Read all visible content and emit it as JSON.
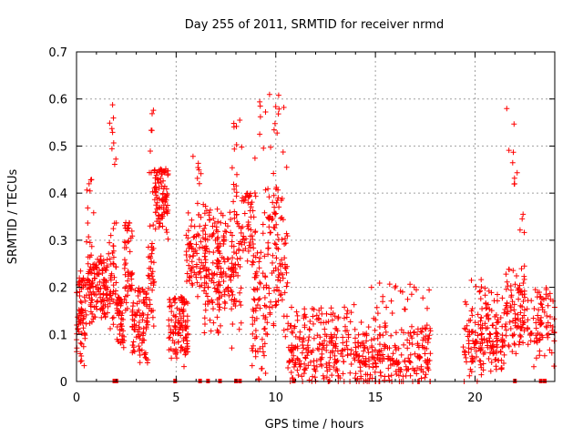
{
  "chart_data": {
    "type": "scatter",
    "title": "Day 255 of 2011, SRMTID for receiver nrmd",
    "xlabel": "GPS time / hours",
    "ylabel": "SRMTID / TECUs",
    "xlim": [
      0,
      24
    ],
    "ylim": [
      0,
      0.7
    ],
    "xticks": [
      "0",
      "5",
      "10",
      "15",
      "20"
    ],
    "xtick_values": [
      0,
      5,
      10,
      15,
      20
    ],
    "yticks": [
      "0",
      "0.1",
      "0.2",
      "0.3",
      "0.4",
      "0.5",
      "0.6",
      "0.7"
    ],
    "ytick_values": [
      0,
      0.1,
      0.2,
      0.3,
      0.4,
      0.5,
      0.6,
      0.7
    ],
    "grid": true,
    "marker": "+",
    "color": "#ff0000",
    "clusters": [
      {
        "x0": 0.0,
        "x1": 0.5,
        "y0": 0.05,
        "y1": 0.2,
        "peak": 0.22,
        "n": 70
      },
      {
        "x0": 0.5,
        "x1": 0.9,
        "y0": 0.15,
        "y1": 0.28,
        "peak": 0.43,
        "n": 55
      },
      {
        "x0": 0.9,
        "x1": 1.6,
        "y0": 0.14,
        "y1": 0.24,
        "peak": 0.26,
        "n": 80
      },
      {
        "x0": 1.6,
        "x1": 2.0,
        "y0": 0.15,
        "y1": 0.3,
        "peak": 0.62,
        "n": 45
      },
      {
        "x0": 2.0,
        "x1": 2.4,
        "y0": 0.07,
        "y1": 0.16,
        "peak": 0.18,
        "n": 45
      },
      {
        "x0": 2.4,
        "x1": 2.8,
        "y0": 0.17,
        "y1": 0.3,
        "peak": 0.34,
        "n": 45
      },
      {
        "x0": 2.8,
        "x1": 3.6,
        "y0": 0.06,
        "y1": 0.17,
        "peak": 0.2,
        "n": 85
      },
      {
        "x0": 3.6,
        "x1": 3.9,
        "y0": 0.15,
        "y1": 0.3,
        "peak": 0.58,
        "n": 40
      },
      {
        "x0": 3.9,
        "x1": 4.6,
        "y0": 0.33,
        "y1": 0.44,
        "peak": 0.45,
        "n": 90
      },
      {
        "x0": 4.6,
        "x1": 5.6,
        "y0": 0.05,
        "y1": 0.16,
        "peak": 0.18,
        "n": 110
      },
      {
        "x0": 5.5,
        "x1": 6.5,
        "y0": 0.2,
        "y1": 0.34,
        "peak": 0.48,
        "n": 90
      },
      {
        "x0": 6.4,
        "x1": 7.2,
        "y0": 0.12,
        "y1": 0.3,
        "peak": 0.37,
        "n": 80
      },
      {
        "x0": 7.0,
        "x1": 7.7,
        "y0": 0.15,
        "y1": 0.3,
        "peak": 0.36,
        "n": 60
      },
      {
        "x0": 7.7,
        "x1": 8.3,
        "y0": 0.12,
        "y1": 0.38,
        "peak": 0.56,
        "n": 70
      },
      {
        "x0": 8.2,
        "x1": 9.0,
        "y0": 0.28,
        "y1": 0.38,
        "peak": 0.4,
        "n": 50
      },
      {
        "x0": 8.8,
        "x1": 9.6,
        "y0": 0.04,
        "y1": 0.26,
        "peak": 0.6,
        "n": 80
      },
      {
        "x0": 9.6,
        "x1": 10.6,
        "y0": 0.15,
        "y1": 0.4,
        "peak": 0.61,
        "n": 110
      },
      {
        "x0": 10.6,
        "x1": 13.8,
        "y0": 0.01,
        "y1": 0.12,
        "peak": 0.16,
        "n": 230
      },
      {
        "x0": 13.9,
        "x1": 17.8,
        "y0": 0.0,
        "y1": 0.1,
        "peak": 0.21,
        "n": 280
      },
      {
        "x0": 19.4,
        "x1": 21.5,
        "y0": 0.03,
        "y1": 0.14,
        "peak": 0.22,
        "n": 180
      },
      {
        "x0": 21.5,
        "x1": 22.5,
        "y0": 0.08,
        "y1": 0.22,
        "peak": 0.58,
        "n": 100
      },
      {
        "x0": 22.6,
        "x1": 24.0,
        "y0": 0.05,
        "y1": 0.17,
        "peak": 0.2,
        "n": 80
      }
    ],
    "zero_points_x": [
      1.9,
      2.0,
      4.95,
      6.2,
      6.6,
      7.2,
      8.0,
      8.2,
      10.9,
      22.0,
      23.3,
      23.5
    ]
  }
}
